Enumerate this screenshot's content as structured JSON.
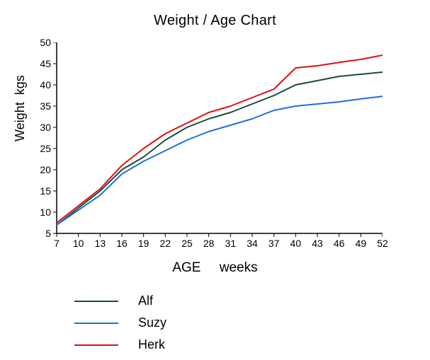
{
  "chart": {
    "type": "line",
    "title": "Weight / Age   Chart",
    "title_fontsize": 20,
    "xlabel": "AGE     weeks",
    "ylabel": "Weight  kgs",
    "label_fontsize": 18,
    "tick_fontsize": 14,
    "background_color": "#ffffff",
    "axis_color": "#000000",
    "tick_color": "#000000",
    "line_width": 2,
    "xlim": [
      7,
      52
    ],
    "ylim": [
      5,
      50
    ],
    "xticks": [
      7,
      10,
      13,
      16,
      19,
      22,
      25,
      28,
      31,
      34,
      37,
      40,
      43,
      46,
      49,
      52
    ],
    "xtick_labels": [
      "7",
      "10",
      "13",
      "16",
      "19",
      "22",
      "25",
      "28",
      "31",
      "34",
      "37",
      "40",
      "43",
      "46",
      "49",
      "52"
    ],
    "yticks": [
      5,
      10,
      15,
      20,
      25,
      30,
      35,
      40,
      45,
      50
    ],
    "ytick_labels": [
      "5",
      "10",
      "15",
      "20",
      "25",
      "30",
      "35",
      "40",
      "45",
      "50"
    ],
    "series": [
      {
        "name": "Alf",
        "color": "#1a4d3a",
        "x": [
          7,
          10,
          13,
          16,
          19,
          22,
          25,
          28,
          31,
          34,
          37,
          40,
          43,
          46,
          49,
          52
        ],
        "y": [
          7,
          11,
          15,
          20,
          23,
          27,
          30,
          32,
          33.5,
          35.5,
          37.5,
          40,
          41,
          42,
          42.5,
          43
        ]
      },
      {
        "name": "Suzy",
        "color": "#1f6fe0",
        "x": [
          7,
          10,
          13,
          16,
          19,
          22,
          25,
          28,
          31,
          34,
          37,
          40,
          43,
          46,
          49,
          52
        ],
        "y": [
          7,
          10.5,
          14,
          19,
          22,
          24.5,
          27,
          29,
          30.5,
          32,
          34,
          35,
          35.5,
          36,
          36.7,
          37.3
        ]
      },
      {
        "name": "Herk",
        "color": "#e01010",
        "x": [
          7,
          10,
          13,
          16,
          19,
          22,
          25,
          28,
          31,
          34,
          37,
          40,
          43,
          46,
          49,
          52
        ],
        "y": [
          7.5,
          11.5,
          15.5,
          21,
          25,
          28.5,
          31,
          33.5,
          35,
          37,
          39,
          44,
          44.5,
          45.3,
          46,
          47
        ]
      }
    ]
  },
  "legend": {
    "items": [
      {
        "label": "Alf",
        "color": "#1a4d3a"
      },
      {
        "label": "Suzy",
        "color": "#1f6fe0"
      },
      {
        "label": "Herk",
        "color": "#e01010"
      }
    ],
    "fontsize": 18
  }
}
